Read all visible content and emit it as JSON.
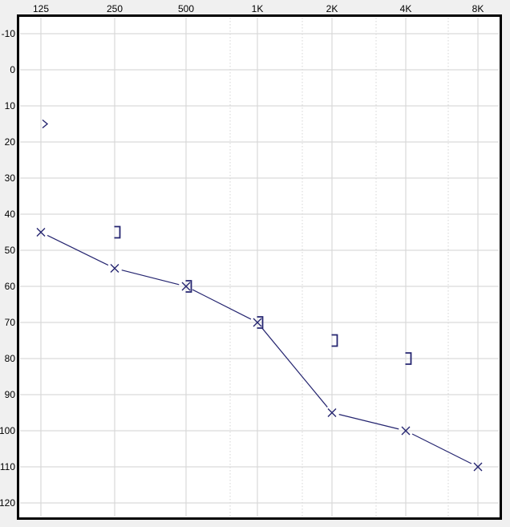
{
  "window": {
    "background_color": "#f0f0f0",
    "plot_background_color": "#ffffff",
    "grid_color": "#d9d9d9",
    "interoctave_dotted_color": "#d4d4d4",
    "border_color": "#000000",
    "series_color": "#252570"
  },
  "chart_data": {
    "type": "line",
    "title": "",
    "description": "Audiogram (left ear): air conduction X symbols joined by line, masked bone conduction ] symbols, one unmasked bone conduction > symbol",
    "x_axis": {
      "position": "top",
      "labels": [
        "125",
        "250",
        "500",
        "1K",
        "2K",
        "4K",
        "8K"
      ],
      "interoctave_dotted_lines": [
        "750",
        "1.5K",
        "3K",
        "6K"
      ]
    },
    "y_axis": {
      "labels": [
        "-10",
        "0",
        "10",
        "20",
        "30",
        "40",
        "50",
        "60",
        "70",
        "80",
        "90",
        "100",
        "110",
        "120"
      ],
      "min": -10,
      "max": 120,
      "step": 10,
      "unit": "dB HL"
    },
    "grid": true,
    "legend": "none",
    "series": [
      {
        "name": "air-conduction-left",
        "marker": "x",
        "connected": true,
        "color": "#252570",
        "points": [
          {
            "freq": "125",
            "db": 45
          },
          {
            "freq": "250",
            "db": 55
          },
          {
            "freq": "500",
            "db": 60
          },
          {
            "freq": "1K",
            "db": 70
          },
          {
            "freq": "2K",
            "db": 95
          },
          {
            "freq": "4K",
            "db": 100
          },
          {
            "freq": "8K",
            "db": 110
          }
        ]
      },
      {
        "name": "bone-conduction-masked-left",
        "marker": "right-bracket",
        "connected": false,
        "color": "#252570",
        "points": [
          {
            "freq": "250",
            "db": 45
          },
          {
            "freq": "500",
            "db": 60
          },
          {
            "freq": "1K",
            "db": 70
          },
          {
            "freq": "2K",
            "db": 75
          },
          {
            "freq": "4K",
            "db": 80
          }
        ]
      },
      {
        "name": "bone-conduction-unmasked-left",
        "marker": "greater-than",
        "connected": false,
        "color": "#252570",
        "points": [
          {
            "freq": "125",
            "db": 15
          }
        ]
      }
    ]
  }
}
